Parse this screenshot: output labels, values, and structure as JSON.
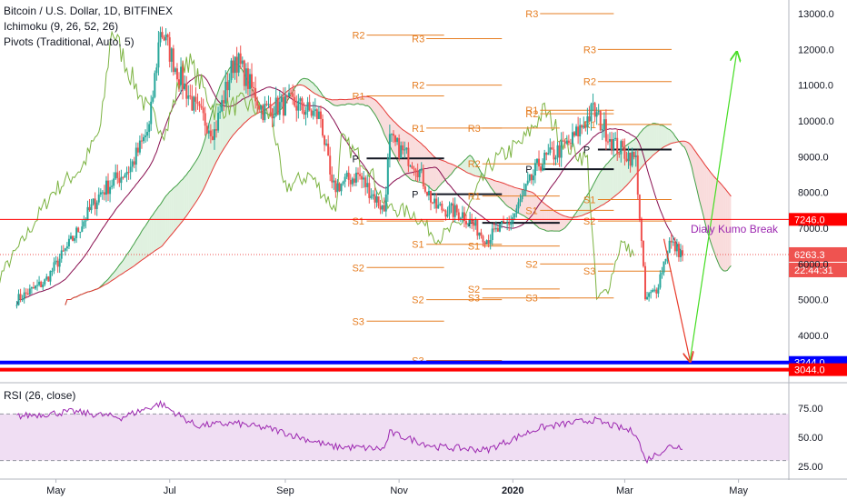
{
  "header": {
    "symbol_line": "Bitcoin / U.S. Dollar, 1D, BITFINEX",
    "ichimoku_line": "Ichimoku (9, 26, 52, 26)",
    "pivots_line": "Pivots (Traditional, Auto, 5)"
  },
  "rsi_title": "RSI (26, close)",
  "annotation": "Dialy Kumo Break",
  "colors": {
    "up": "#26a69a",
    "down": "#ef5350",
    "cloud_green": "#a5d6a7",
    "cloud_red": "#ef9a9a",
    "pivot": "#e67e22",
    "rsi_line": "#9c27b0",
    "rsi_band": "#e1bee7",
    "blue_line": "#0000ff",
    "red_line": "#ff0000",
    "arrow_up": "#44dd22",
    "arrow_down": "#e83b2b"
  },
  "chart_data": [
    {
      "type": "candlestick",
      "title": "Bitcoin / U.S. Dollar, 1D, BITFINEX",
      "x_tick_labels": [
        "May",
        "Jul",
        "Sep",
        "Nov",
        "2020",
        "Mar",
        "May"
      ],
      "y_tick_labels": [
        "4000.0",
        "5000.0",
        "6000.0",
        "7000.0",
        "8000.0",
        "9000.0",
        "10000.0",
        "11000.0",
        "12000.0",
        "13000.0"
      ],
      "ylim": [
        3000,
        13300
      ],
      "price_path": [
        [
          "2019-04-10",
          5000
        ],
        [
          "2019-04-25",
          5500
        ],
        [
          "2019-05-10",
          6700
        ],
        [
          "2019-05-25",
          8000
        ],
        [
          "2019-06-10",
          8700
        ],
        [
          "2019-06-20",
          9800
        ],
        [
          "2019-06-26",
          12600
        ],
        [
          "2019-07-05",
          11400
        ],
        [
          "2019-07-15",
          10300
        ],
        [
          "2019-07-25",
          9700
        ],
        [
          "2019-08-05",
          11800
        ],
        [
          "2019-08-20",
          10300
        ],
        [
          "2019-09-05",
          10500
        ],
        [
          "2019-09-20",
          10100
        ],
        [
          "2019-09-26",
          8100
        ],
        [
          "2019-10-10",
          8500
        ],
        [
          "2019-10-24",
          7500
        ],
        [
          "2019-10-27",
          9450
        ],
        [
          "2019-11-10",
          8800
        ],
        [
          "2019-11-20",
          7600
        ],
        [
          "2019-12-05",
          7400
        ],
        [
          "2019-12-18",
          6700
        ],
        [
          "2019-12-31",
          7200
        ],
        [
          "2020-01-15",
          8800
        ],
        [
          "2020-02-01",
          9400
        ],
        [
          "2020-02-13",
          10300
        ],
        [
          "2020-02-25",
          9300
        ],
        [
          "2020-03-07",
          8900
        ],
        [
          "2020-03-12",
          5000
        ],
        [
          "2020-03-18",
          5300
        ],
        [
          "2020-03-25",
          6600
        ],
        [
          "2020-04-01",
          6263.3
        ]
      ],
      "horizontal_levels": [
        {
          "label": "7246.0",
          "value": 7246.0,
          "color": "#ff0000"
        },
        {
          "label": "3244.0",
          "value": 3244.0,
          "color": "#0000ff"
        },
        {
          "label": "3044.0",
          "value": 3044.0,
          "color": "#ff0000"
        }
      ],
      "last_price_label": "6263.3",
      "countdown_label": "22:44:31",
      "pivot_labels": {
        "period1": {
          "R2": 12400,
          "R1": 10700,
          "P": 8950,
          "S1": 7200,
          "S2": 5900,
          "S3": 4400
        },
        "period2": {
          "R3": 12300,
          "R2": 11000,
          "R1": 9800,
          "P": 7950,
          "S1": 6550,
          "S2": 5000,
          "S3": 3300
        },
        "period3": {
          "R3": 9800,
          "R2": 8800,
          "R1": 7900,
          "P": 7150,
          "S1": 6500,
          "S2": 5300,
          "S3": 5050
        },
        "period4": {
          "R3": 13000,
          "R2": 10200,
          "R1": 10300,
          "P": 8650,
          "S1": 7500,
          "S2": 6000,
          "S3": 5050
        },
        "period5": {
          "R3": 12000,
          "R2": 11100,
          "R1": 9900,
          "P": 9200,
          "S1": 7800,
          "S2": 7200,
          "S3": 5800
        }
      },
      "annotation": "Dialy Kumo Break",
      "arrows": [
        {
          "from": [
            "2020-03-22",
            6700
          ],
          "to": [
            "2020-04-05",
            3300
          ],
          "color": "#e83b2b"
        },
        {
          "from": [
            "2020-04-05",
            3300
          ],
          "to": [
            "2020-04-30",
            11900
          ],
          "color": "#44dd22"
        }
      ]
    },
    {
      "type": "line",
      "title": "RSI (26, close)",
      "y_tick_labels": [
        "25.00",
        "50.00",
        "75.00"
      ],
      "ylim": [
        20,
        85
      ],
      "band": [
        30,
        70
      ],
      "rsi_path": [
        [
          "2019-04-10",
          68
        ],
        [
          "2019-05-10",
          72
        ],
        [
          "2019-06-05",
          67
        ],
        [
          "2019-06-26",
          79
        ],
        [
          "2019-07-15",
          60
        ],
        [
          "2019-08-05",
          62
        ],
        [
          "2019-08-25",
          57
        ],
        [
          "2019-09-26",
          42
        ],
        [
          "2019-10-24",
          40
        ],
        [
          "2019-10-27",
          54
        ],
        [
          "2019-11-20",
          42
        ],
        [
          "2019-12-18",
          39
        ],
        [
          "2020-01-15",
          58
        ],
        [
          "2020-02-13",
          65
        ],
        [
          "2020-03-07",
          54
        ],
        [
          "2020-03-12",
          30
        ],
        [
          "2020-03-25",
          42
        ],
        [
          "2020-04-01",
          42
        ]
      ]
    }
  ]
}
